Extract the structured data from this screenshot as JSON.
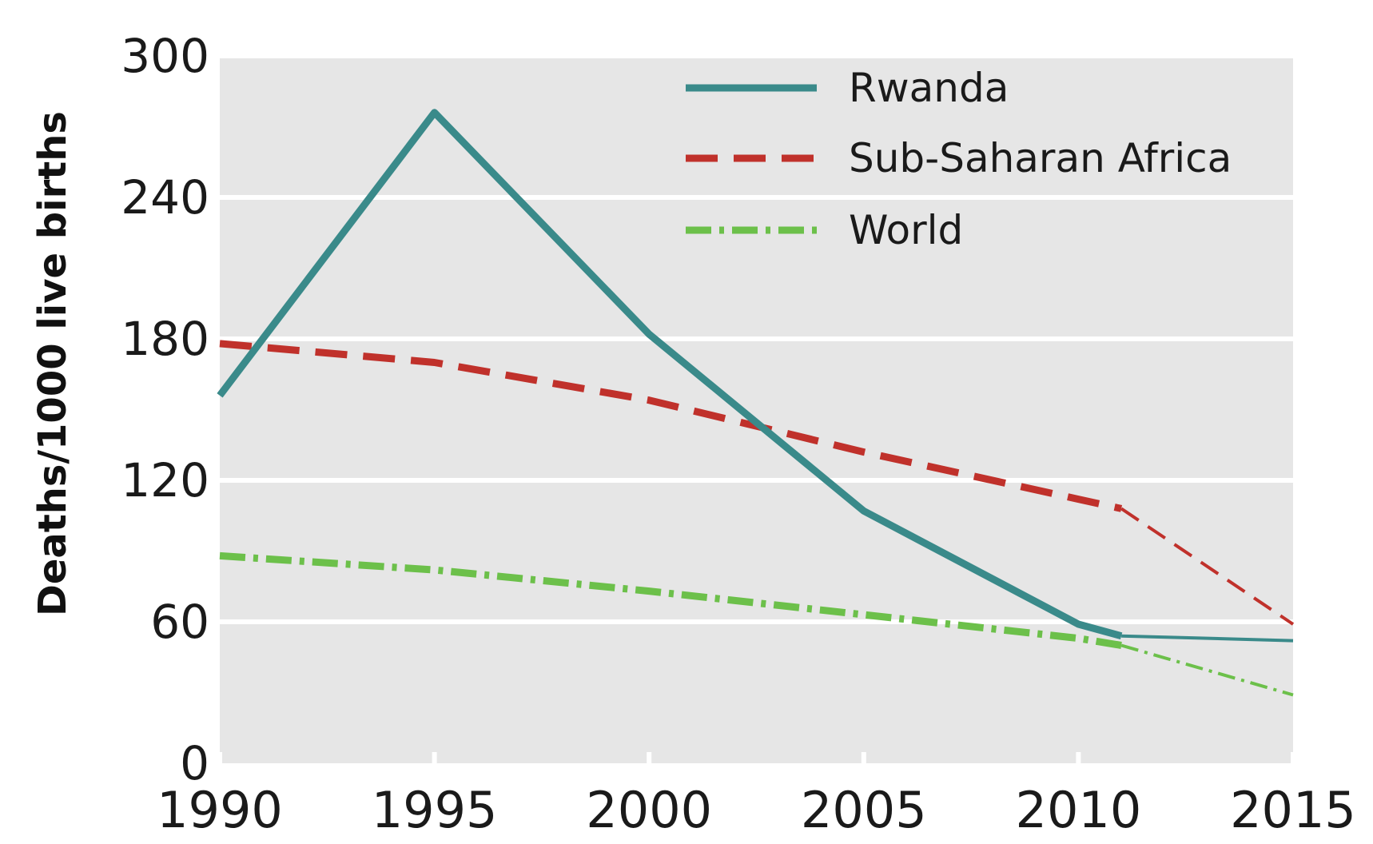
{
  "chart_data": {
    "type": "line",
    "title": "",
    "xlabel": "",
    "ylabel": "Deaths/1000 live births",
    "x": [
      1990,
      1995,
      2000,
      2005,
      2010,
      2011,
      2015
    ],
    "xlim": [
      1990,
      2015
    ],
    "ylim": [
      0,
      300
    ],
    "x_ticks": [
      "1990",
      "1995",
      "2000",
      "2005",
      "2010",
      "2015"
    ],
    "y_ticks": [
      "0",
      "60",
      "120",
      "180",
      "240",
      "300"
    ],
    "grid": "horizontal",
    "legend_position": "top-right",
    "background_color": "#e6e6e6",
    "series": [
      {
        "name": "Rwanda",
        "color": "#3a8a8a",
        "style": "solid",
        "points": [
          [
            1990,
            156
          ],
          [
            1995,
            276
          ],
          [
            2000,
            182
          ],
          [
            2005,
            107
          ],
          [
            2010,
            59
          ],
          [
            2011,
            54
          ],
          [
            2015,
            52
          ]
        ]
      },
      {
        "name": "Sub-Saharan Africa",
        "color": "#c0312b",
        "style": "dashed",
        "points": [
          [
            1990,
            178
          ],
          [
            1995,
            170
          ],
          [
            2000,
            154
          ],
          [
            2005,
            132
          ],
          [
            2010,
            112
          ],
          [
            2011,
            108
          ],
          [
            2015,
            59
          ]
        ]
      },
      {
        "name": "World",
        "color": "#6cc04a",
        "style": "dotdash",
        "points": [
          [
            1990,
            88
          ],
          [
            1995,
            82
          ],
          [
            2000,
            73
          ],
          [
            2005,
            63
          ],
          [
            2010,
            53
          ],
          [
            2011,
            50
          ],
          [
            2015,
            29
          ]
        ]
      }
    ],
    "projection_from_x": 2011
  }
}
